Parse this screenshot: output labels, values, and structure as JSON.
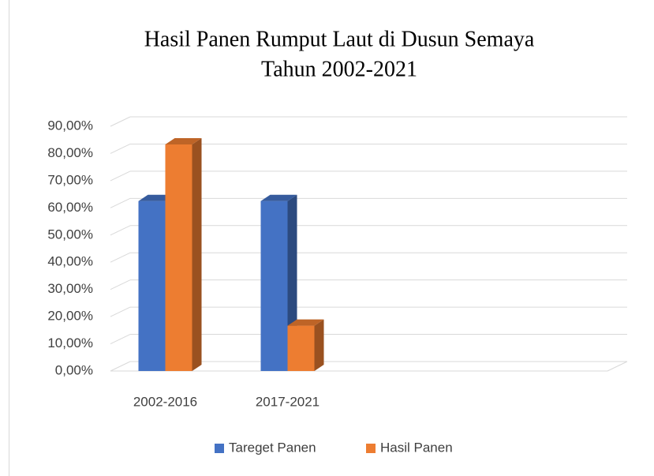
{
  "chart_data": {
    "type": "bar3d",
    "title": [
      "Hasil Panen Rumput Laut di Dusun Semaya",
      "Tahun 2002-2021"
    ],
    "categories": [
      "2002-2016",
      "2017-2021",
      null,
      null
    ],
    "series": [
      {
        "name": "Tareget Panen",
        "color": "#4472c4",
        "values": [
          62.5,
          62.5,
          null,
          null
        ]
      },
      {
        "name": "Hasil Panen",
        "color": "#ed7d31",
        "values": [
          83.33,
          16.67,
          null,
          null
        ]
      }
    ],
    "ylim": [
      0,
      90
    ],
    "yticks": [
      {
        "value": 0,
        "label": "0,00%"
      },
      {
        "value": 10,
        "label": "10,00%"
      },
      {
        "value": 20,
        "label": "20,00%"
      },
      {
        "value": 30,
        "label": "30,00%"
      },
      {
        "value": 40,
        "label": "40,00%"
      },
      {
        "value": 50,
        "label": "50,00%"
      },
      {
        "value": 60,
        "label": "60,00%"
      },
      {
        "value": 70,
        "label": "70,00%"
      },
      {
        "value": 80,
        "label": "80,00%"
      },
      {
        "value": 90,
        "label": "90,00%"
      }
    ],
    "grid": true,
    "legend": "bottom"
  }
}
